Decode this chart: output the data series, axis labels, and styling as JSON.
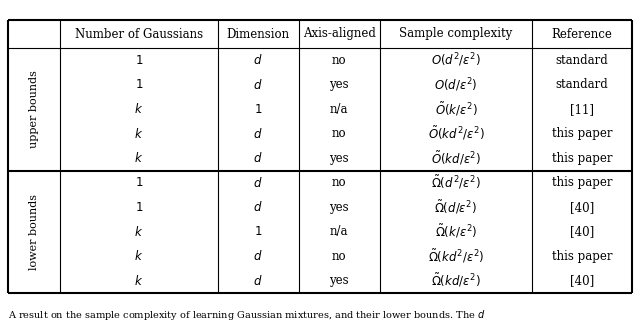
{
  "caption": "A result on the sample complexity of learning Gaussian mixtures, and their lower bounds. The $d$",
  "headers": [
    "Number of Gaussians",
    "Dimension",
    "Axis-aligned",
    "Sample complexity",
    "Reference"
  ],
  "rows": [
    [
      "$1$",
      "$d$",
      "no",
      "$O(d^2/\\varepsilon^2)$",
      "standard"
    ],
    [
      "$1$",
      "$d$",
      "yes",
      "$O(d/\\varepsilon^2)$",
      "standard"
    ],
    [
      "$k$",
      "$1$",
      "n/a",
      "$\\tilde{O}(k/\\varepsilon^2)$",
      "[11]"
    ],
    [
      "$k$",
      "$d$",
      "no",
      "$\\tilde{O}(kd^2/\\varepsilon^2)$",
      "this paper"
    ],
    [
      "$k$",
      "$d$",
      "yes",
      "$\\tilde{O}(kd/\\varepsilon^2)$",
      "this paper"
    ],
    [
      "$1$",
      "$d$",
      "no",
      "$\\tilde{\\Omega}(d^2/\\varepsilon^2)$",
      "this paper"
    ],
    [
      "$1$",
      "$d$",
      "yes",
      "$\\tilde{\\Omega}(d/\\varepsilon^2)$",
      "[40]"
    ],
    [
      "$k$",
      "$1$",
      "n/a",
      "$\\tilde{\\Omega}(k/\\varepsilon^2)$",
      "[40]"
    ],
    [
      "$k$",
      "$d$",
      "no",
      "$\\tilde{\\Omega}(kd^2/\\varepsilon^2)$",
      "this paper"
    ],
    [
      "$k$",
      "$d$",
      "yes",
      "$\\tilde{\\Omega}(kd/\\varepsilon^2)$",
      "[40]"
    ]
  ],
  "section_labels": [
    "upper bounds",
    "lower bounds"
  ],
  "fig_width": 6.4,
  "fig_height": 3.3,
  "bg_color": "#ffffff",
  "line_color": "#000000",
  "text_color": "#000000",
  "font_size": 8.5,
  "header_font_size": 8.5,
  "section_font_size": 8.0,
  "caption_font_size": 7.0
}
